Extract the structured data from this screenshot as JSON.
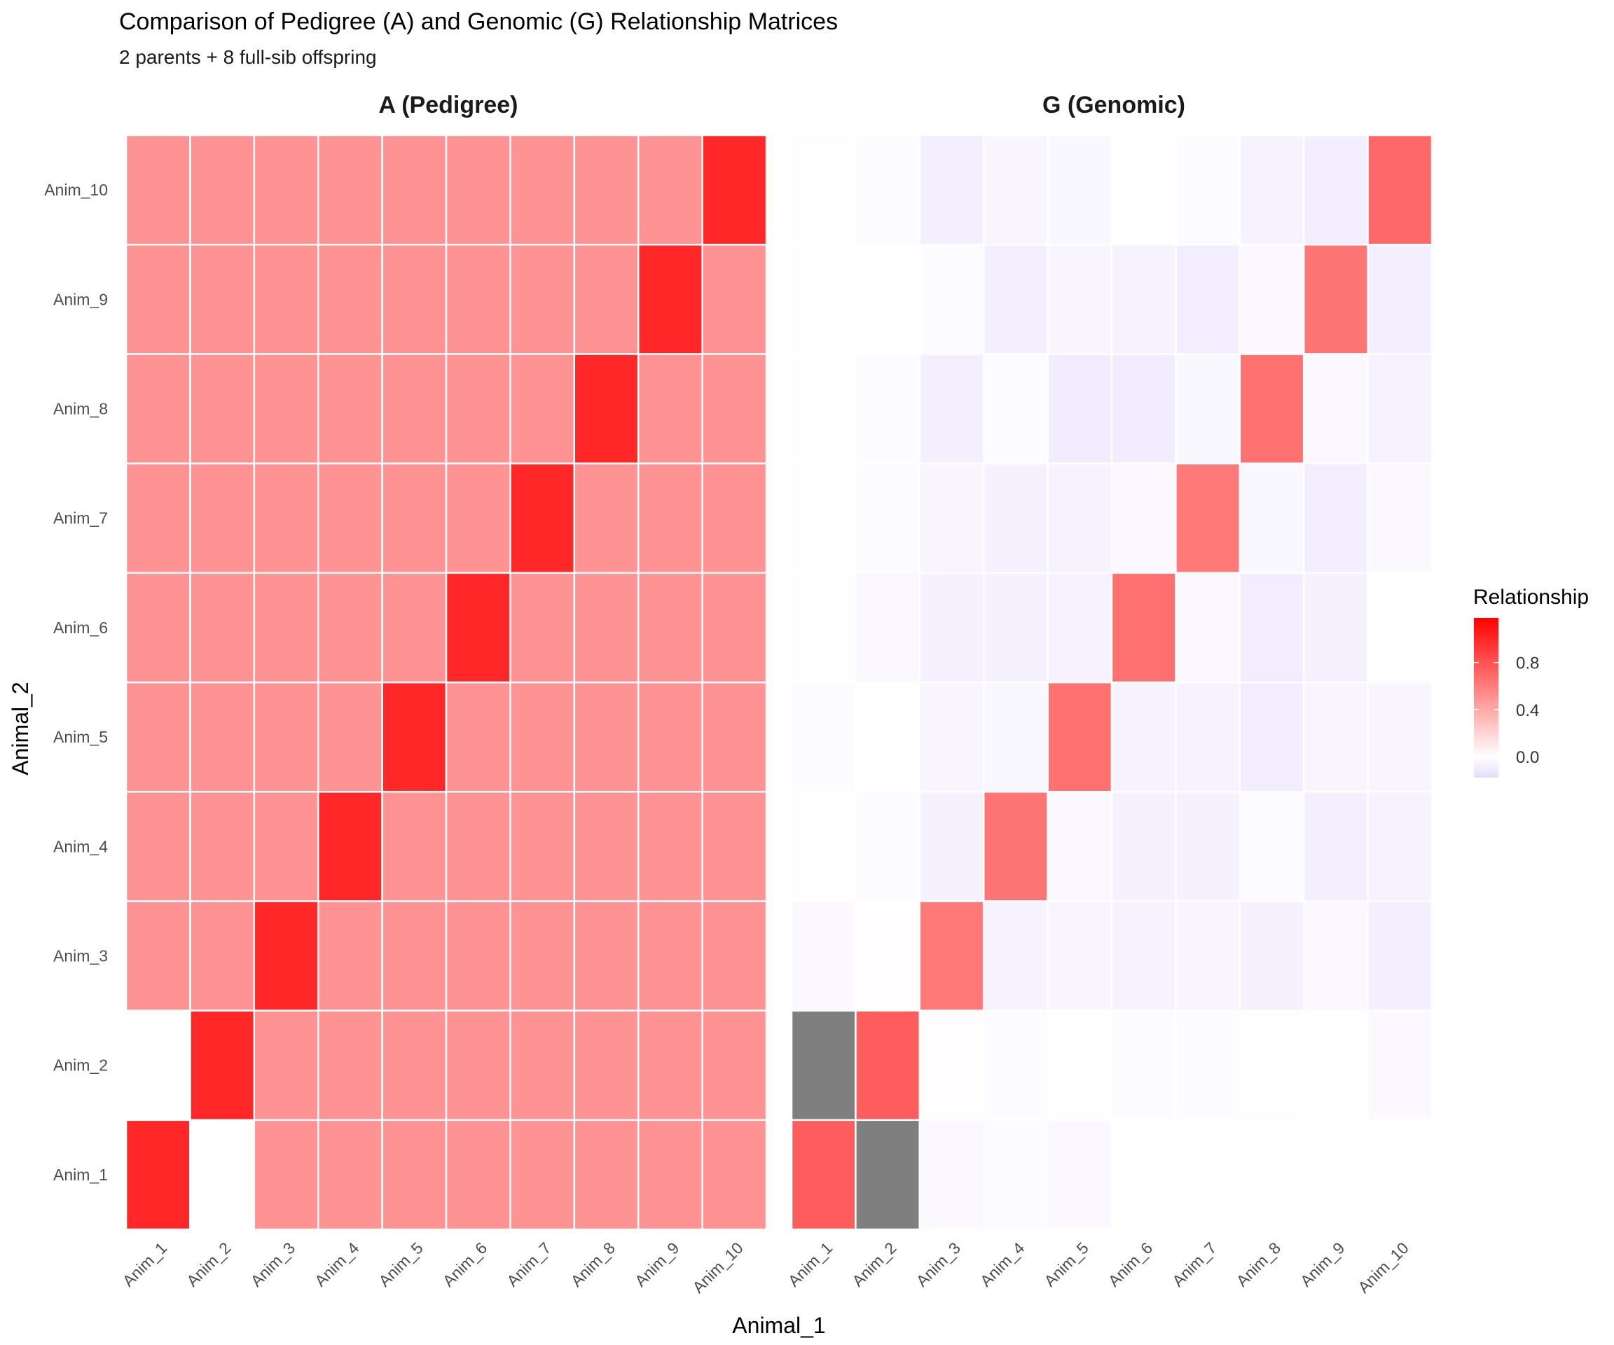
{
  "chart_data": {
    "type": "heatmap",
    "title": "Comparison of Pedigree (A) and Genomic (G) Relationship Matrices",
    "subtitle": "2 parents + 8 full-sib offspring",
    "xlabel": "Animal_1",
    "ylabel": "Animal_2",
    "animals": [
      "Anim_1",
      "Anim_2",
      "Anim_3",
      "Anim_4",
      "Anim_5",
      "Anim_6",
      "Anim_7",
      "Anim_8",
      "Anim_9",
      "Anim_10"
    ],
    "legend": {
      "title": "Relationship",
      "breaks": [
        0.8,
        0.4,
        0.0
      ],
      "break_labels": [
        "0.8",
        "0.4",
        "0.0"
      ],
      "range": [
        -0.18,
        1.18
      ],
      "colors": {
        "low": "#e5dcff",
        "mid": "#ffffff",
        "high": "#ff0000",
        "na": "#7f7f7f"
      }
    },
    "panels": [
      {
        "name": "A (Pedigree)",
        "matrix": [
          [
            1.0,
            0.0,
            0.5,
            0.5,
            0.5,
            0.5,
            0.5,
            0.5,
            0.5,
            0.5
          ],
          [
            0.0,
            1.0,
            0.5,
            0.5,
            0.5,
            0.5,
            0.5,
            0.5,
            0.5,
            0.5
          ],
          [
            0.5,
            0.5,
            1.0,
            0.5,
            0.5,
            0.5,
            0.5,
            0.5,
            0.5,
            0.5
          ],
          [
            0.5,
            0.5,
            0.5,
            1.0,
            0.5,
            0.5,
            0.5,
            0.5,
            0.5,
            0.5
          ],
          [
            0.5,
            0.5,
            0.5,
            0.5,
            1.0,
            0.5,
            0.5,
            0.5,
            0.5,
            0.5
          ],
          [
            0.5,
            0.5,
            0.5,
            0.5,
            0.5,
            1.0,
            0.5,
            0.5,
            0.5,
            0.5
          ],
          [
            0.5,
            0.5,
            0.5,
            0.5,
            0.5,
            0.5,
            1.0,
            0.5,
            0.5,
            0.5
          ],
          [
            0.5,
            0.5,
            0.5,
            0.5,
            0.5,
            0.5,
            0.5,
            1.0,
            0.5,
            0.5
          ],
          [
            0.5,
            0.5,
            0.5,
            0.5,
            0.5,
            0.5,
            0.5,
            0.5,
            1.0,
            0.5
          ],
          [
            0.5,
            0.5,
            0.5,
            0.5,
            0.5,
            0.5,
            0.5,
            0.5,
            0.5,
            1.0
          ]
        ]
      },
      {
        "name": "G (Genomic)",
        "matrix": [
          [
            0.75,
            null,
            -0.03,
            -0.02,
            -0.03,
            0.0,
            -0.01,
            -0.01,
            -0.01,
            -0.01
          ],
          [
            null,
            0.75,
            0.01,
            -0.02,
            -0.01,
            -0.02,
            -0.02,
            -0.01,
            0.0,
            -0.03
          ],
          [
            -0.03,
            0.01,
            0.62,
            -0.06,
            -0.05,
            -0.06,
            -0.05,
            -0.07,
            -0.03,
            -0.08
          ],
          [
            -0.01,
            -0.02,
            -0.07,
            0.64,
            -0.03,
            -0.07,
            -0.07,
            -0.02,
            -0.08,
            -0.06
          ],
          [
            -0.02,
            -0.01,
            -0.05,
            -0.04,
            0.66,
            -0.06,
            -0.06,
            -0.09,
            -0.05,
            -0.05
          ],
          [
            -0.01,
            -0.03,
            -0.07,
            -0.07,
            -0.06,
            0.66,
            -0.03,
            -0.09,
            -0.07,
            0.0
          ],
          [
            -0.01,
            -0.02,
            -0.05,
            -0.07,
            -0.06,
            -0.03,
            0.62,
            -0.04,
            -0.09,
            -0.03
          ],
          [
            -0.01,
            -0.02,
            -0.08,
            -0.02,
            -0.1,
            -0.1,
            -0.04,
            0.66,
            -0.03,
            -0.06
          ],
          [
            -0.01,
            0.0,
            -0.02,
            -0.08,
            -0.05,
            -0.06,
            -0.09,
            -0.03,
            0.64,
            -0.08
          ],
          [
            -0.01,
            -0.02,
            -0.08,
            -0.05,
            -0.04,
            0.0,
            -0.02,
            -0.06,
            -0.09,
            0.7
          ]
        ]
      }
    ]
  }
}
